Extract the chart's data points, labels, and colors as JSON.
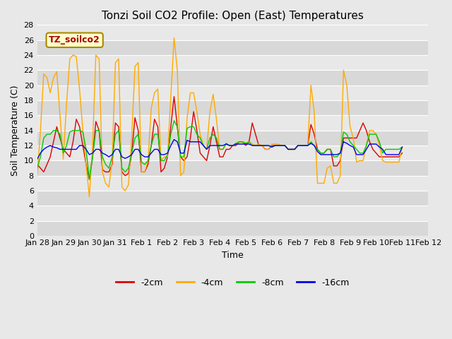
{
  "title": "Tonzi Soil CO2 Profile: Open (East) Temperatures",
  "xlabel": "Time",
  "ylabel": "Soil Temperature (C)",
  "ylim": [
    0,
    28
  ],
  "yticks": [
    0,
    2,
    4,
    6,
    8,
    10,
    12,
    14,
    16,
    18,
    20,
    22,
    24,
    26,
    28
  ],
  "legend_label": "TZ_soilco2",
  "legend_entries": [
    "-2cm",
    "-4cm",
    "-8cm",
    "-16cm"
  ],
  "legend_colors": [
    "#dd0000",
    "#ffaa00",
    "#00cc00",
    "#0000ee"
  ],
  "bg_color": "#e8e8e8",
  "plot_bg": "#e8e8e8",
  "grid_color": "#ffffff",
  "title_fontsize": 11,
  "series": {
    "2cm": {
      "color": "#dd0000",
      "times_hours": [
        0,
        3,
        6,
        9,
        12,
        15,
        18,
        21,
        24,
        27,
        30,
        33,
        36,
        39,
        42,
        45,
        48,
        51,
        54,
        57,
        60,
        63,
        66,
        69,
        72,
        75,
        78,
        81,
        84,
        87,
        90,
        93,
        96,
        99,
        102,
        105,
        108,
        111,
        114,
        117,
        120,
        123,
        126,
        129,
        132,
        135,
        138,
        141,
        144,
        147,
        150,
        153,
        156,
        159,
        162,
        165,
        168,
        171,
        174,
        177,
        180,
        183,
        186,
        189,
        192,
        195,
        198,
        201,
        204,
        207,
        210,
        213,
        216,
        219,
        222,
        225,
        228,
        231,
        234,
        237,
        240,
        243,
        246,
        249,
        252,
        255,
        258,
        261,
        264,
        267,
        270,
        273,
        276,
        279,
        282,
        285,
        288,
        291,
        294,
        297,
        300,
        303,
        306,
        309,
        312,
        315,
        318,
        321,
        324,
        327,
        330,
        333,
        336
      ],
      "values": [
        9.5,
        9.0,
        8.5,
        9.5,
        10.5,
        12.5,
        14.5,
        13.0,
        11.5,
        11.0,
        10.5,
        12.5,
        15.5,
        14.5,
        12.0,
        9.5,
        7.5,
        10.5,
        15.2,
        14.0,
        8.8,
        8.5,
        8.5,
        9.5,
        15.0,
        14.5,
        8.5,
        8.0,
        8.3,
        11.0,
        15.7,
        14.0,
        8.5,
        8.5,
        9.5,
        12.0,
        15.5,
        14.5,
        8.5,
        9.0,
        10.5,
        14.5,
        18.5,
        14.5,
        10.5,
        10.0,
        10.5,
        13.0,
        16.5,
        14.0,
        11.0,
        10.5,
        10.0,
        12.0,
        14.5,
        12.5,
        10.5,
        10.5,
        11.5,
        11.5,
        12.0,
        12.0,
        12.5,
        12.5,
        12.0,
        12.5,
        15.0,
        13.5,
        12.0,
        12.0,
        11.5,
        11.5,
        12.0,
        12.0,
        12.0,
        12.0,
        12.0,
        11.5,
        11.5,
        11.5,
        12.0,
        12.0,
        12.0,
        12.0,
        14.8,
        13.5,
        11.5,
        11.0,
        11.0,
        11.5,
        11.5,
        9.3,
        9.3,
        10.0,
        13.0,
        13.0,
        13.0,
        13.0,
        13.0,
        14.0,
        15.0,
        14.0,
        12.5,
        11.5,
        11.0,
        10.5,
        10.5,
        10.5,
        10.5,
        10.5,
        10.5,
        10.5,
        11.0
      ]
    },
    "4cm": {
      "color": "#ffaa00",
      "times_hours": [
        0,
        3,
        6,
        9,
        12,
        15,
        18,
        21,
        24,
        27,
        30,
        33,
        36,
        39,
        42,
        45,
        48,
        51,
        54,
        57,
        60,
        63,
        66,
        69,
        72,
        75,
        78,
        81,
        84,
        87,
        90,
        93,
        96,
        99,
        102,
        105,
        108,
        111,
        114,
        117,
        120,
        123,
        126,
        129,
        132,
        135,
        138,
        141,
        144,
        147,
        150,
        153,
        156,
        159,
        162,
        165,
        168,
        171,
        174,
        177,
        180,
        183,
        186,
        189,
        192,
        195,
        198,
        201,
        204,
        207,
        210,
        213,
        216,
        219,
        222,
        225,
        228,
        231,
        234,
        237,
        240,
        243,
        246,
        249,
        252,
        255,
        258,
        261,
        264,
        267,
        270,
        273,
        276,
        279,
        282,
        285,
        288,
        291,
        294,
        297,
        300,
        303,
        306,
        309,
        312,
        315,
        318,
        321,
        324,
        327,
        330,
        333,
        336
      ],
      "values": [
        8.0,
        14.0,
        21.5,
        21.0,
        19.0,
        21.0,
        21.8,
        16.0,
        10.2,
        17.5,
        23.5,
        24.0,
        23.8,
        19.5,
        14.0,
        9.5,
        5.2,
        12.0,
        24.0,
        23.5,
        8.5,
        7.0,
        6.5,
        10.0,
        23.0,
        23.5,
        6.5,
        6.0,
        6.8,
        13.0,
        22.5,
        23.0,
        8.5,
        8.5,
        10.0,
        17.0,
        19.0,
        19.5,
        10.0,
        10.5,
        10.5,
        18.5,
        26.3,
        22.0,
        8.0,
        8.5,
        15.7,
        19.0,
        19.0,
        16.5,
        13.5,
        12.0,
        11.5,
        16.5,
        18.8,
        15.5,
        11.5,
        11.5,
        12.2,
        12.0,
        12.0,
        12.2,
        12.5,
        12.5,
        12.2,
        12.5,
        12.2,
        12.0,
        12.2,
        12.0,
        11.5,
        11.5,
        12.2,
        12.2,
        12.2,
        12.0,
        12.0,
        11.5,
        11.5,
        11.5,
        12.0,
        12.0,
        12.0,
        12.0,
        20.0,
        16.5,
        7.0,
        7.0,
        7.0,
        9.0,
        9.3,
        7.0,
        7.0,
        8.0,
        22.0,
        20.0,
        14.5,
        13.0,
        9.8,
        10.0,
        10.0,
        12.0,
        14.0,
        14.0,
        13.5,
        12.0,
        10.0,
        9.8,
        9.8,
        9.8,
        9.8,
        9.8,
        11.8
      ]
    },
    "8cm": {
      "color": "#00cc00",
      "times_hours": [
        0,
        3,
        6,
        9,
        12,
        15,
        18,
        21,
        24,
        27,
        30,
        33,
        36,
        39,
        42,
        45,
        48,
        51,
        54,
        57,
        60,
        63,
        66,
        69,
        72,
        75,
        78,
        81,
        84,
        87,
        90,
        93,
        96,
        99,
        102,
        105,
        108,
        111,
        114,
        117,
        120,
        123,
        126,
        129,
        132,
        135,
        138,
        141,
        144,
        147,
        150,
        153,
        156,
        159,
        162,
        165,
        168,
        171,
        174,
        177,
        180,
        183,
        186,
        189,
        192,
        195,
        198,
        201,
        204,
        207,
        210,
        213,
        216,
        219,
        222,
        225,
        228,
        231,
        234,
        237,
        240,
        243,
        246,
        249,
        252,
        255,
        258,
        261,
        264,
        267,
        270,
        273,
        276,
        279,
        282,
        285,
        288,
        291,
        294,
        297,
        300,
        303,
        306,
        309,
        312,
        315,
        318,
        321,
        324,
        327,
        330,
        333,
        336
      ],
      "values": [
        9.0,
        10.5,
        13.0,
        13.5,
        13.5,
        14.0,
        14.0,
        13.5,
        11.0,
        12.0,
        13.8,
        14.0,
        14.0,
        14.0,
        13.8,
        11.5,
        7.5,
        10.5,
        14.0,
        14.0,
        10.5,
        9.5,
        9.0,
        10.5,
        13.5,
        14.0,
        9.0,
        8.5,
        9.0,
        11.0,
        13.0,
        13.5,
        9.8,
        9.5,
        10.0,
        12.0,
        13.5,
        13.5,
        10.0,
        10.0,
        10.8,
        13.5,
        15.3,
        14.5,
        10.5,
        10.5,
        14.3,
        14.5,
        14.5,
        13.5,
        13.0,
        12.0,
        11.5,
        13.0,
        13.5,
        13.0,
        11.5,
        11.5,
        12.3,
        12.0,
        12.0,
        12.3,
        12.5,
        12.5,
        12.3,
        12.5,
        12.0,
        12.0,
        12.0,
        12.0,
        12.0,
        12.0,
        11.8,
        12.0,
        12.0,
        12.0,
        12.0,
        11.5,
        11.5,
        11.5,
        12.0,
        12.0,
        12.0,
        12.0,
        12.5,
        12.0,
        11.5,
        11.0,
        11.0,
        11.5,
        11.5,
        10.5,
        10.5,
        11.0,
        13.8,
        13.5,
        12.5,
        12.0,
        11.5,
        11.0,
        11.0,
        12.0,
        13.5,
        13.5,
        13.5,
        12.5,
        11.0,
        11.5,
        11.5,
        11.5,
        11.5,
        11.5,
        11.8
      ]
    },
    "16cm": {
      "color": "#0000ee",
      "times_hours": [
        0,
        3,
        6,
        9,
        12,
        15,
        18,
        21,
        24,
        27,
        30,
        33,
        36,
        39,
        42,
        45,
        48,
        51,
        54,
        57,
        60,
        63,
        66,
        69,
        72,
        75,
        78,
        81,
        84,
        87,
        90,
        93,
        96,
        99,
        102,
        105,
        108,
        111,
        114,
        117,
        120,
        123,
        126,
        129,
        132,
        135,
        138,
        141,
        144,
        147,
        150,
        153,
        156,
        159,
        162,
        165,
        168,
        171,
        174,
        177,
        180,
        183,
        186,
        189,
        192,
        195,
        198,
        201,
        204,
        207,
        210,
        213,
        216,
        219,
        222,
        225,
        228,
        231,
        234,
        237,
        240,
        243,
        246,
        249,
        252,
        255,
        258,
        261,
        264,
        267,
        270,
        273,
        276,
        279,
        282,
        285,
        288,
        291,
        294,
        297,
        300,
        303,
        306,
        309,
        312,
        315,
        318,
        321,
        324,
        327,
        330,
        333,
        336
      ],
      "values": [
        10.2,
        11.0,
        11.5,
        11.8,
        12.0,
        11.8,
        11.7,
        11.5,
        11.5,
        11.5,
        11.5,
        11.5,
        11.5,
        12.0,
        12.0,
        11.5,
        10.8,
        11.0,
        11.5,
        11.5,
        11.0,
        10.8,
        10.5,
        10.8,
        11.5,
        11.5,
        10.5,
        10.3,
        10.5,
        10.8,
        11.5,
        11.5,
        10.8,
        10.5,
        10.5,
        11.0,
        11.5,
        11.5,
        10.8,
        10.8,
        11.0,
        12.0,
        12.8,
        12.5,
        11.0,
        11.0,
        12.7,
        12.5,
        12.5,
        12.5,
        12.5,
        12.0,
        11.5,
        12.0,
        12.0,
        12.0,
        12.0,
        12.0,
        12.2,
        12.0,
        12.0,
        12.2,
        12.2,
        12.2,
        12.2,
        12.2,
        12.0,
        12.0,
        12.0,
        12.0,
        12.0,
        12.0,
        11.8,
        12.0,
        12.0,
        12.0,
        12.0,
        11.5,
        11.5,
        11.5,
        12.0,
        12.0,
        12.0,
        12.0,
        12.3,
        12.0,
        11.2,
        10.8,
        10.8,
        10.8,
        10.8,
        10.8,
        10.8,
        11.0,
        12.5,
        12.3,
        12.0,
        11.8,
        10.8,
        10.8,
        10.8,
        11.5,
        12.2,
        12.2,
        12.2,
        11.8,
        11.5,
        10.8,
        10.8,
        10.8,
        10.8,
        10.8,
        11.8
      ]
    }
  },
  "xtick_labels": [
    "Jan 28",
    "Jan 29",
    "Jan 30",
    "Jan 31",
    "Feb 1",
    "Feb 2",
    "Feb 3",
    "Feb 4",
    "Feb 5",
    "Feb 6",
    "Feb 7",
    "Feb 8",
    "Feb 9",
    "Feb 10",
    "Feb 11",
    "Feb 12"
  ],
  "xtick_hours": [
    0,
    24,
    48,
    72,
    96,
    120,
    144,
    168,
    192,
    216,
    240,
    264,
    288,
    312,
    336,
    360
  ]
}
